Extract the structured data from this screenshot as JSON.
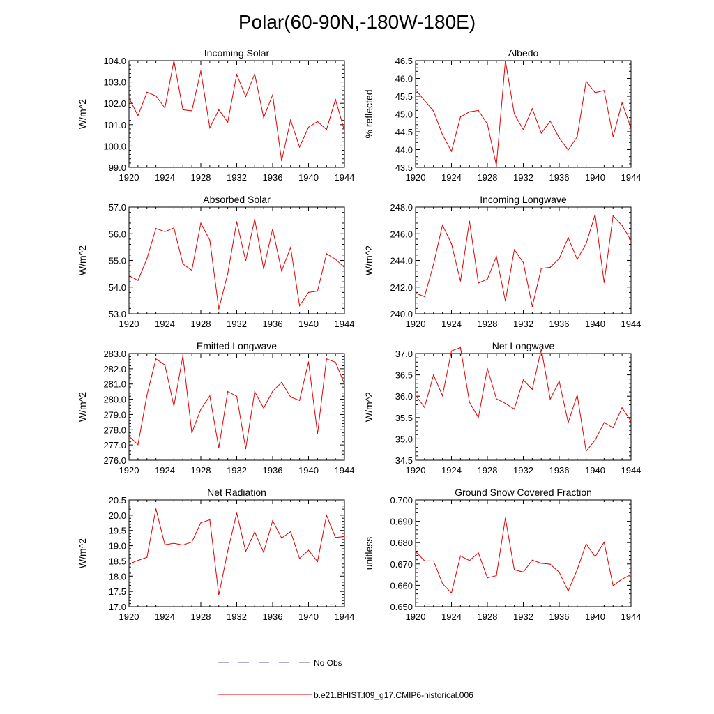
{
  "figure": {
    "title": "Polar(60-90N,-180W-180E)",
    "legend": {
      "obs_label": "No Obs",
      "obs_color": "#5a5ab4",
      "model_label": "b.e21.BHIST.f09_g17.CMIP6-historical.006",
      "model_color": "#e00000"
    }
  },
  "chart_data": [
    {
      "type": "line",
      "title": "Incoming Solar",
      "ylabel": "W/m^2",
      "xlabel": "",
      "xlim": [
        1920,
        1944
      ],
      "ylim": [
        99.0,
        104.0
      ],
      "x_ticks": [
        1920,
        1924,
        1928,
        1932,
        1936,
        1940,
        1944
      ],
      "y_ticks": [
        "99.0",
        "100.0",
        "101.0",
        "102.0",
        "103.0",
        "104.0"
      ],
      "series": [
        {
          "name": "b.e21.BHIST.f09_g17.CMIP6-historical.006",
          "x": [
            1920,
            1921,
            1922,
            1923,
            1924,
            1925,
            1926,
            1927,
            1928,
            1929,
            1930,
            1931,
            1932,
            1933,
            1934,
            1935,
            1936,
            1937,
            1938,
            1939,
            1940,
            1941,
            1942,
            1943,
            1944
          ],
          "values": [
            102.25,
            101.42,
            102.52,
            102.35,
            101.78,
            104.0,
            101.7,
            101.65,
            103.52,
            100.85,
            101.7,
            101.12,
            103.35,
            102.32,
            103.38,
            101.33,
            102.4,
            99.3,
            101.22,
            99.95,
            100.88,
            101.15,
            100.77,
            102.18,
            100.72
          ]
        }
      ]
    },
    {
      "type": "line",
      "title": "Albedo",
      "ylabel": "% reflected",
      "xlabel": "",
      "xlim": [
        1920,
        1944
      ],
      "ylim": [
        43.5,
        46.5
      ],
      "x_ticks": [
        1920,
        1924,
        1928,
        1932,
        1936,
        1940,
        1944
      ],
      "y_ticks": [
        "43.5",
        "44.0",
        "44.5",
        "45.0",
        "45.5",
        "46.0",
        "46.5"
      ],
      "series": [
        {
          "name": "b.e21.BHIST.f09_g17.CMIP6-historical.006",
          "x": [
            1920,
            1921,
            1922,
            1923,
            1924,
            1925,
            1926,
            1927,
            1928,
            1929,
            1930,
            1931,
            1932,
            1933,
            1934,
            1935,
            1936,
            1937,
            1938,
            1939,
            1940,
            1941,
            1942,
            1943,
            1944
          ],
          "values": [
            45.68,
            45.38,
            45.08,
            44.42,
            43.95,
            44.92,
            45.06,
            45.1,
            44.72,
            43.55,
            46.5,
            45.0,
            44.56,
            45.15,
            44.46,
            44.8,
            44.33,
            43.99,
            44.36,
            45.92,
            45.6,
            45.66,
            44.36,
            45.32,
            44.6
          ]
        }
      ]
    },
    {
      "type": "line",
      "title": "Absorbed Solar",
      "ylabel": "W/m^2",
      "xlabel": "",
      "xlim": [
        1920,
        1944
      ],
      "ylim": [
        53.0,
        57.0
      ],
      "x_ticks": [
        1920,
        1924,
        1928,
        1932,
        1936,
        1940,
        1944
      ],
      "y_ticks": [
        "53.0",
        "54.0",
        "55.0",
        "56.0",
        "57.0"
      ],
      "series": [
        {
          "name": "b.e21.BHIST.f09_g17.CMIP6-historical.006",
          "x": [
            1920,
            1921,
            1922,
            1923,
            1924,
            1925,
            1926,
            1927,
            1928,
            1929,
            1930,
            1931,
            1932,
            1933,
            1934,
            1935,
            1936,
            1937,
            1938,
            1939,
            1940,
            1941,
            1942,
            1943,
            1944
          ],
          "values": [
            54.43,
            54.25,
            55.07,
            56.2,
            56.08,
            56.22,
            54.87,
            54.63,
            56.4,
            55.76,
            53.18,
            54.5,
            56.45,
            54.98,
            56.55,
            54.68,
            56.18,
            54.6,
            55.49,
            53.3,
            53.8,
            53.85,
            55.25,
            55.05,
            54.73
          ]
        }
      ]
    },
    {
      "type": "line",
      "title": "Incoming Longwave",
      "ylabel": "W/m^2",
      "xlabel": "",
      "xlim": [
        1920,
        1944
      ],
      "ylim": [
        240.0,
        248.0
      ],
      "x_ticks": [
        1920,
        1924,
        1928,
        1932,
        1936,
        1940,
        1944
      ],
      "y_ticks": [
        "240.0",
        "242.0",
        "244.0",
        "246.0",
        "248.0"
      ],
      "series": [
        {
          "name": "b.e21.BHIST.f09_g17.CMIP6-historical.006",
          "x": [
            1920,
            1921,
            1922,
            1923,
            1924,
            1925,
            1926,
            1927,
            1928,
            1929,
            1930,
            1931,
            1932,
            1933,
            1934,
            1935,
            1936,
            1937,
            1938,
            1939,
            1940,
            1941,
            1942,
            1943,
            1944
          ],
          "values": [
            241.55,
            241.28,
            243.72,
            246.65,
            245.25,
            242.45,
            246.95,
            242.3,
            242.6,
            244.3,
            240.95,
            244.8,
            243.85,
            240.55,
            243.4,
            243.48,
            244.14,
            245.71,
            244.08,
            245.25,
            247.45,
            242.34,
            247.34,
            246.62,
            245.5
          ]
        }
      ]
    },
    {
      "type": "line",
      "title": "Emitted Longwave",
      "ylabel": "W/m^2",
      "xlabel": "",
      "xlim": [
        1920,
        1944
      ],
      "ylim": [
        276.0,
        283.0
      ],
      "x_ticks": [
        1920,
        1924,
        1928,
        1932,
        1936,
        1940,
        1944
      ],
      "y_ticks": [
        "276.0",
        "277.0",
        "278.0",
        "279.0",
        "280.0",
        "281.0",
        "282.0",
        "283.0"
      ],
      "series": [
        {
          "name": "b.e21.BHIST.f09_g17.CMIP6-historical.006",
          "x": [
            1920,
            1921,
            1922,
            1923,
            1924,
            1925,
            1926,
            1927,
            1928,
            1929,
            1930,
            1931,
            1932,
            1933,
            1934,
            1935,
            1936,
            1937,
            1938,
            1939,
            1940,
            1941,
            1942,
            1943,
            1944
          ],
          "values": [
            277.58,
            277.02,
            280.28,
            282.65,
            282.25,
            279.55,
            282.85,
            277.8,
            279.34,
            280.22,
            276.8,
            280.5,
            280.2,
            276.75,
            280.5,
            279.42,
            280.52,
            281.11,
            280.15,
            279.92,
            282.45,
            277.73,
            282.65,
            282.43,
            281.0
          ]
        }
      ]
    },
    {
      "type": "line",
      "title": "Net Longwave",
      "ylabel": "W/m^2",
      "xlabel": "",
      "xlim": [
        1920,
        1944
      ],
      "ylim": [
        34.5,
        37.0
      ],
      "x_ticks": [
        1920,
        1924,
        1928,
        1932,
        1936,
        1940,
        1944
      ],
      "y_ticks": [
        "34.5",
        "35.0",
        "35.5",
        "36.0",
        "36.5",
        "37.0"
      ],
      "series": [
        {
          "name": "b.e21.BHIST.f09_g17.CMIP6-historical.006",
          "x": [
            1920,
            1921,
            1922,
            1923,
            1924,
            1925,
            1926,
            1927,
            1928,
            1929,
            1930,
            1931,
            1932,
            1933,
            1934,
            1935,
            1936,
            1937,
            1938,
            1939,
            1940,
            1941,
            1942,
            1943,
            1944
          ],
          "values": [
            36.02,
            35.74,
            36.5,
            36.01,
            37.06,
            37.14,
            35.86,
            35.5,
            36.65,
            35.94,
            35.83,
            35.7,
            36.38,
            36.16,
            37.11,
            35.93,
            36.35,
            35.38,
            36.03,
            34.71,
            34.97,
            35.38,
            35.26,
            35.73,
            35.41
          ]
        }
      ]
    },
    {
      "type": "line",
      "title": "Net Radiation",
      "ylabel": "W/m^2",
      "xlabel": "",
      "xlim": [
        1920,
        1944
      ],
      "ylim": [
        17.0,
        20.5
      ],
      "x_ticks": [
        1920,
        1924,
        1928,
        1932,
        1936,
        1940,
        1944
      ],
      "y_ticks": [
        "17.0",
        "17.5",
        "18.0",
        "18.5",
        "19.0",
        "19.5",
        "20.0",
        "20.5"
      ],
      "series": [
        {
          "name": "b.e21.BHIST.f09_g17.CMIP6-historical.006",
          "x": [
            1920,
            1921,
            1922,
            1923,
            1924,
            1925,
            1926,
            1927,
            1928,
            1929,
            1930,
            1931,
            1932,
            1933,
            1934,
            1935,
            1936,
            1937,
            1938,
            1939,
            1940,
            1941,
            1942,
            1943,
            1944
          ],
          "values": [
            18.4,
            18.52,
            18.62,
            20.21,
            19.03,
            19.08,
            19.02,
            19.12,
            19.75,
            19.85,
            17.38,
            18.82,
            20.07,
            18.81,
            19.45,
            18.78,
            19.82,
            19.25,
            19.46,
            18.58,
            18.85,
            18.48,
            20.0,
            19.27,
            19.3
          ]
        }
      ]
    },
    {
      "type": "line",
      "title": "Ground Snow Covered Fraction",
      "ylabel": "unitless",
      "xlabel": "",
      "xlim": [
        1920,
        1944
      ],
      "ylim": [
        0.65,
        0.7
      ],
      "x_ticks": [
        1920,
        1924,
        1928,
        1932,
        1936,
        1940,
        1944
      ],
      "y_ticks": [
        "0.650",
        "0.660",
        "0.670",
        "0.680",
        "0.690",
        "0.700"
      ],
      "series": [
        {
          "name": "b.e21.BHIST.f09_g17.CMIP6-historical.006",
          "x": [
            1920,
            1921,
            1922,
            1923,
            1924,
            1925,
            1926,
            1927,
            1928,
            1929,
            1930,
            1931,
            1932,
            1933,
            1934,
            1935,
            1936,
            1937,
            1938,
            1939,
            1940,
            1941,
            1942,
            1943,
            1944
          ],
          "values": [
            0.6758,
            0.6715,
            0.6714,
            0.6608,
            0.6564,
            0.6738,
            0.6716,
            0.6752,
            0.6635,
            0.6645,
            0.6915,
            0.6673,
            0.6662,
            0.6718,
            0.6703,
            0.6699,
            0.6661,
            0.6573,
            0.6673,
            0.6794,
            0.6734,
            0.6802,
            0.6598,
            0.6629,
            0.665
          ]
        }
      ]
    }
  ]
}
